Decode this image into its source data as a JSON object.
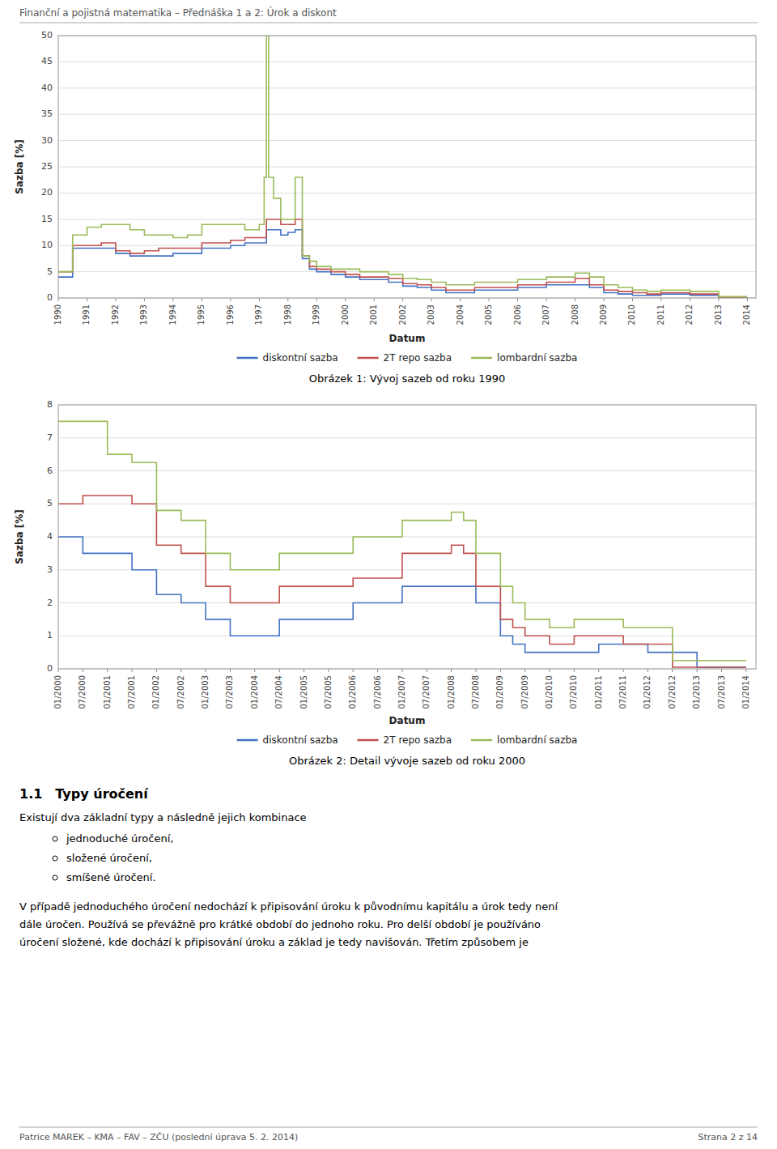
{
  "page_title": "Finanční a pojistná matematika – Přednáška 1 a 2: Úrok a diskont",
  "footer_left": "Patrice MAREK – KMA – FAV – ZČU (poslední úprava 5. 2. 2014)",
  "footer_right": "Strana 2 z 14",
  "body_heading": "1.1 Typy úročení",
  "body_para1": "Existují dva základní typy a následně jejich kombinace",
  "body_bullets": [
    "jednoduché úročení,",
    "složené úročení,",
    "smíšené úročení."
  ],
  "body_para2": "V případě jednoduchého úročení nedochází k připisování úroku k původnímu kapitálu a úrok tedy není\ndále úročen. Používá se převážně pro krátké období do jednoho roku. Pro delší období je používáno\núročení složené, kde dochází k připisování úroku a základ je tedy navišován. Třetím způsobem je",
  "chart_data": [
    {
      "type": "step",
      "title": "Obrázek 1: Vývoj sazeb od roku 1990",
      "x_label": "Datum",
      "y_label": "Sazba [%]",
      "xlim": [
        1990,
        2014.3
      ],
      "xticks": [
        1990,
        1991,
        1992,
        1993,
        1994,
        1995,
        1996,
        1997,
        1998,
        1999,
        2000,
        2001,
        2002,
        2003,
        2004,
        2005,
        2006,
        2007,
        2008,
        2009,
        2010,
        2011,
        2012,
        2013,
        2014
      ],
      "ylim": [
        0,
        50
      ],
      "yticks": [
        0,
        5,
        10,
        15,
        20,
        25,
        30,
        35,
        40,
        45,
        50
      ],
      "grid": true,
      "legend": "bottom",
      "series": [
        {
          "name": "diskontní sazba",
          "color": "#4472C4",
          "x": [
            1990,
            1990.08,
            1990.5,
            1991,
            1991.5,
            1992,
            1992.5,
            1993,
            1993.5,
            1994,
            1994.5,
            1995,
            1995.5,
            1996,
            1996.5,
            1997,
            1997.25,
            1997.5,
            1997.75,
            1998,
            1998.25,
            1998.5,
            1998.75,
            1999,
            1999.5,
            2000,
            2000.5,
            2001,
            2001.5,
            2002,
            2002.5,
            2003,
            2003.5,
            2004,
            2004.5,
            2005,
            2005.5,
            2006,
            2006.5,
            2007,
            2007.5,
            2008,
            2008.5,
            2009,
            2009.5,
            2010,
            2010.5,
            2011,
            2011.5,
            2012,
            2012.5,
            2013,
            2013.5,
            2014
          ],
          "values": [
            4.0,
            4.0,
            9.5,
            9.5,
            9.5,
            8.5,
            8.0,
            8.0,
            8.0,
            8.5,
            8.5,
            9.5,
            9.5,
            10.0,
            10.5,
            10.5,
            13.0,
            13.0,
            12.0,
            12.5,
            13.0,
            7.5,
            5.5,
            5.0,
            4.5,
            4.0,
            3.5,
            3.5,
            3.0,
            2.25,
            2.0,
            1.5,
            1.0,
            1.0,
            1.5,
            1.5,
            1.5,
            2.0,
            2.0,
            2.5,
            2.5,
            2.5,
            2.0,
            1.0,
            0.75,
            0.5,
            0.5,
            0.75,
            0.75,
            0.5,
            0.5,
            0.05,
            0.05,
            0.05
          ]
        },
        {
          "name": "2T repo sazba",
          "color": "#C0504D",
          "x": [
            1990,
            1990.08,
            1990.5,
            1991,
            1991.5,
            1992,
            1992.5,
            1993,
            1993.5,
            1994,
            1994.5,
            1995,
            1995.5,
            1996,
            1996.5,
            1997,
            1997.25,
            1997.5,
            1997.75,
            1998,
            1998.25,
            1998.5,
            1998.75,
            1999,
            1999.5,
            2000,
            2000.5,
            2001,
            2001.5,
            2002,
            2002.5,
            2003,
            2003.5,
            2004,
            2004.5,
            2005,
            2005.5,
            2006,
            2006.5,
            2007,
            2007.5,
            2008,
            2008.5,
            2009,
            2009.5,
            2010,
            2010.5,
            2011,
            2011.5,
            2012,
            2012.5,
            2013,
            2013.5,
            2014
          ],
          "values": [
            5.0,
            5.0,
            10.0,
            10.0,
            10.5,
            9.0,
            8.5,
            9.0,
            9.5,
            9.5,
            9.5,
            10.5,
            10.5,
            11.0,
            11.5,
            11.5,
            15.0,
            15.0,
            14.0,
            14.0,
            15.0,
            8.0,
            6.0,
            5.5,
            5.0,
            4.5,
            4.0,
            4.0,
            3.75,
            2.75,
            2.5,
            2.0,
            1.5,
            1.5,
            2.0,
            2.0,
            2.0,
            2.5,
            2.5,
            3.0,
            3.0,
            3.75,
            2.5,
            1.5,
            1.25,
            1.0,
            0.75,
            1.0,
            1.0,
            0.75,
            0.75,
            0.05,
            0.05,
            0.05
          ]
        },
        {
          "name": "lombardní sazba",
          "color": "#9BBB59",
          "x": [
            1990,
            1990.08,
            1990.5,
            1991,
            1991.5,
            1992,
            1992.5,
            1993,
            1993.5,
            1994,
            1994.5,
            1995,
            1995.5,
            1996,
            1996.5,
            1997,
            1997.08,
            1997.17,
            1997.25,
            1997.33,
            1997.5,
            1997.75,
            1998,
            1998.25,
            1998.5,
            1998.75,
            1999,
            1999.5,
            2000,
            2000.5,
            2001,
            2001.5,
            2002,
            2002.5,
            2003,
            2003.5,
            2004,
            2004.5,
            2005,
            2005.5,
            2006,
            2006.5,
            2007,
            2007.5,
            2008,
            2008.5,
            2009,
            2009.5,
            2010,
            2010.5,
            2011,
            2011.5,
            2012,
            2012.5,
            2013,
            2013.5,
            2014
          ],
          "values": [
            5.0,
            5.0,
            12.0,
            13.5,
            14.0,
            14.0,
            13.0,
            12.0,
            12.0,
            11.5,
            12.0,
            14.0,
            14.0,
            14.0,
            13.0,
            14.0,
            14.0,
            23.0,
            50.0,
            23.0,
            19.0,
            15.0,
            15.0,
            23.0,
            8.0,
            7.0,
            6.0,
            5.5,
            5.5,
            5.0,
            5.0,
            4.5,
            3.75,
            3.5,
            3.0,
            2.5,
            2.5,
            3.0,
            3.0,
            3.0,
            3.5,
            3.5,
            4.0,
            4.0,
            4.75,
            4.0,
            2.5,
            2.0,
            1.5,
            1.25,
            1.5,
            1.5,
            1.25,
            1.25,
            0.25,
            0.25,
            0.25
          ]
        }
      ]
    },
    {
      "type": "step",
      "title": "Obrázek 2: Detail vývoje sazeb od roku 2000",
      "x_label": "Datum",
      "y_label": "Sazba [%]",
      "xlim": [
        2000.0,
        2014.2
      ],
      "xticks": [
        {
          "value": 2000,
          "label": "01/2000"
        },
        {
          "value": 2000.5,
          "label": "07/2000"
        },
        {
          "value": 2001,
          "label": "01/2001"
        },
        {
          "value": 2001.5,
          "label": "07/2001"
        },
        {
          "value": 2002,
          "label": "01/2002"
        },
        {
          "value": 2002.5,
          "label": "07/2002"
        },
        {
          "value": 2003,
          "label": "01/2003"
        },
        {
          "value": 2003.5,
          "label": "07/2003"
        },
        {
          "value": 2004,
          "label": "01/2004"
        },
        {
          "value": 2004.5,
          "label": "07/2004"
        },
        {
          "value": 2005,
          "label": "01/2005"
        },
        {
          "value": 2005.5,
          "label": "07/2005"
        },
        {
          "value": 2006,
          "label": "01/2006"
        },
        {
          "value": 2006.5,
          "label": "07/2006"
        },
        {
          "value": 2007,
          "label": "01/2007"
        },
        {
          "value": 2007.5,
          "label": "07/2007"
        },
        {
          "value": 2008,
          "label": "01/2008"
        },
        {
          "value": 2008.5,
          "label": "07/2008"
        },
        {
          "value": 2009,
          "label": "01/2009"
        },
        {
          "value": 2009.5,
          "label": "07/2009"
        },
        {
          "value": 2010,
          "label": "01/2010"
        },
        {
          "value": 2010.5,
          "label": "07/2010"
        },
        {
          "value": 2011,
          "label": "01/2011"
        },
        {
          "value": 2011.5,
          "label": "07/2011"
        },
        {
          "value": 2012,
          "label": "01/2012"
        },
        {
          "value": 2012.5,
          "label": "07/2012"
        },
        {
          "value": 2013,
          "label": "01/2013"
        },
        {
          "value": 2013.5,
          "label": "07/2013"
        },
        {
          "value": 2014,
          "label": "01/2014"
        }
      ],
      "ylim": [
        0,
        8
      ],
      "yticks": [
        0,
        1,
        2,
        3,
        4,
        5,
        6,
        7,
        8
      ],
      "grid": true,
      "legend": "bottom",
      "series": [
        {
          "name": "diskontní sazba",
          "color": "#4472C4",
          "x": [
            2000.0,
            2000.08,
            2000.5,
            2001.0,
            2001.5,
            2002.0,
            2002.5,
            2003.0,
            2003.5,
            2004.0,
            2004.5,
            2005.0,
            2005.5,
            2006.0,
            2006.5,
            2007.0,
            2007.5,
            2008.0,
            2008.5,
            2009.0,
            2009.25,
            2009.5,
            2010.0,
            2010.5,
            2011.0,
            2011.5,
            2012.0,
            2012.5,
            2013.0,
            2013.5,
            2014.0
          ],
          "values": [
            4.0,
            4.0,
            3.5,
            3.5,
            3.0,
            2.25,
            2.0,
            1.5,
            1.0,
            1.0,
            1.5,
            1.5,
            1.5,
            2.0,
            2.0,
            2.5,
            2.5,
            2.5,
            2.0,
            1.0,
            0.75,
            0.5,
            0.5,
            0.5,
            0.75,
            0.75,
            0.5,
            0.5,
            0.05,
            0.05,
            0.05
          ]
        },
        {
          "name": "2T repo sazba",
          "color": "#C0504D",
          "x": [
            2000.0,
            2000.08,
            2000.5,
            2001.0,
            2001.5,
            2002.0,
            2002.5,
            2003.0,
            2003.5,
            2004.0,
            2004.5,
            2005.0,
            2005.5,
            2006.0,
            2006.5,
            2007.0,
            2007.5,
            2008.0,
            2008.25,
            2008.5,
            2009.0,
            2009.25,
            2009.5,
            2010.0,
            2010.5,
            2011.0,
            2011.5,
            2012.0,
            2012.5,
            2013.0,
            2013.5,
            2014.0
          ],
          "values": [
            5.0,
            5.0,
            5.25,
            5.25,
            5.0,
            3.75,
            3.5,
            2.5,
            2.0,
            2.0,
            2.5,
            2.5,
            2.5,
            2.75,
            2.75,
            3.5,
            3.5,
            3.75,
            3.5,
            2.5,
            1.5,
            1.25,
            1.0,
            0.75,
            1.0,
            1.0,
            0.75,
            0.75,
            0.05,
            0.05,
            0.05,
            0.05
          ]
        },
        {
          "name": "lombardní sazba",
          "color": "#9BBB59",
          "x": [
            2000.0,
            2000.08,
            2000.5,
            2001.0,
            2001.5,
            2002.0,
            2002.5,
            2003.0,
            2003.5,
            2004.0,
            2004.5,
            2005.0,
            2005.5,
            2006.0,
            2006.5,
            2007.0,
            2007.5,
            2008.0,
            2008.25,
            2008.5,
            2009.0,
            2009.25,
            2009.5,
            2010.0,
            2010.5,
            2011.0,
            2011.5,
            2012.0,
            2012.5,
            2013.0,
            2013.5,
            2014.0
          ],
          "values": [
            7.5,
            7.5,
            7.5,
            6.5,
            6.25,
            4.8,
            4.5,
            3.5,
            3.0,
            3.0,
            3.5,
            3.5,
            3.5,
            4.0,
            4.0,
            4.5,
            4.5,
            4.75,
            4.5,
            3.5,
            2.5,
            2.0,
            1.5,
            1.25,
            1.5,
            1.5,
            1.25,
            1.25,
            0.25,
            0.25,
            0.25,
            0.25
          ]
        }
      ]
    }
  ]
}
